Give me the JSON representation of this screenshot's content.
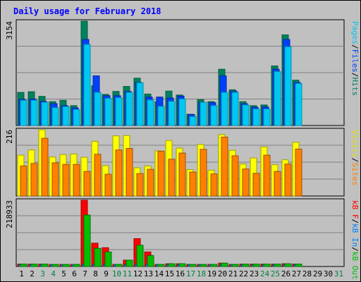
{
  "title": "Daily usage for February 2018",
  "colors": {
    "pages": "#00c8f0",
    "files": "#0040ff",
    "hits": "#008060",
    "visits": "#ffff00",
    "sites": "#ff8000",
    "kb_f": "#ff0000",
    "kb_in": "#0080ff",
    "kb_out": "#00c000",
    "weekday_label": "#000000",
    "weekend_label": "#008040"
  },
  "panels": [
    {
      "ymax_label": "3154",
      "legend": [
        {
          "label": "Pages",
          "color": "#00c8f0"
        },
        {
          "label": "/",
          "color": "#000000"
        },
        {
          "label": "Files",
          "color": "#0040ff"
        },
        {
          "label": "/",
          "color": "#000000"
        },
        {
          "label": "Hits",
          "color": "#008060"
        }
      ]
    },
    {
      "ymax_label": "216",
      "legend": [
        {
          "label": "Visits",
          "color": "#e0e000"
        },
        {
          "label": "/",
          "color": "#000000"
        },
        {
          "label": "Sites",
          "color": "#ff8000"
        }
      ]
    },
    {
      "ymax_label": "218933",
      "legend": [
        {
          "label": "kB F",
          "color": "#ff0000"
        },
        {
          "label": "/",
          "color": "#000000"
        },
        {
          "label": "kB In",
          "color": "#0080ff"
        },
        {
          "label": "/",
          "color": "#000000"
        },
        {
          "label": "kB Out",
          "color": "#00c000"
        }
      ]
    }
  ],
  "chart_data": [
    {
      "type": "bar",
      "categories": [
        "1",
        "2",
        "3",
        "4",
        "5",
        "6",
        "7",
        "8",
        "9",
        "10",
        "11",
        "12",
        "13",
        "14",
        "15",
        "16",
        "17",
        "18",
        "19",
        "20",
        "21",
        "22",
        "23",
        "24",
        "25",
        "26",
        "27",
        "28",
        "29",
        "30",
        "31"
      ],
      "weekend_days": [
        3,
        4,
        10,
        11,
        17,
        18,
        24,
        25,
        31
      ],
      "ylim": [
        0,
        3154
      ],
      "series": [
        {
          "name": "Hits",
          "values": [
            1000,
            1020,
            880,
            720,
            760,
            600,
            3154,
            1200,
            940,
            1030,
            1180,
            1430,
            950,
            720,
            1040,
            920,
            340,
            780,
            720,
            1700,
            1080,
            720,
            600,
            620,
            1800,
            2740,
            1370,
            0,
            0,
            0,
            0
          ]
        },
        {
          "name": "Files",
          "values": [
            790,
            800,
            730,
            660,
            600,
            530,
            2600,
            1500,
            900,
            900,
            1030,
            1300,
            860,
            860,
            830,
            890,
            330,
            700,
            690,
            1500,
            1040,
            660,
            550,
            560,
            1700,
            2600,
            1300,
            0,
            0,
            0,
            0
          ]
        },
        {
          "name": "Pages",
          "values": [
            760,
            760,
            700,
            540,
            570,
            480,
            2450,
            1000,
            820,
            840,
            1000,
            1290,
            770,
            580,
            730,
            800,
            270,
            700,
            600,
            1000,
            1000,
            620,
            500,
            500,
            1630,
            2380,
            1270,
            0,
            0,
            0,
            0
          ]
        }
      ]
    },
    {
      "type": "bar",
      "categories": [
        "1",
        "2",
        "3",
        "4",
        "5",
        "6",
        "7",
        "8",
        "9",
        "10",
        "11",
        "12",
        "13",
        "14",
        "15",
        "16",
        "17",
        "18",
        "19",
        "20",
        "21",
        "22",
        "23",
        "24",
        "25",
        "26",
        "27",
        "28",
        "29",
        "30",
        "31"
      ],
      "ylim": [
        0,
        216
      ],
      "series": [
        {
          "name": "Visits",
          "values": [
            133,
            150,
            216,
            127,
            135,
            137,
            126,
            178,
            99,
            196,
            197,
            92,
            98,
            147,
            181,
            156,
            86,
            168,
            84,
            200,
            149,
            104,
            124,
            160,
            102,
            118,
            175,
            0,
            0,
            0,
            0
          ]
        },
        {
          "name": "Sites",
          "values": [
            98,
            106,
            188,
            108,
            103,
            103,
            80,
            136,
            71,
            150,
            155,
            73,
            87,
            146,
            120,
            140,
            78,
            152,
            72,
            192,
            131,
            88,
            74,
            133,
            80,
            104,
            153,
            0,
            0,
            0,
            0
          ]
        }
      ]
    },
    {
      "type": "bar",
      "categories": [
        "1",
        "2",
        "3",
        "4",
        "5",
        "6",
        "7",
        "8",
        "9",
        "10",
        "11",
        "12",
        "13",
        "14",
        "15",
        "16",
        "17",
        "18",
        "19",
        "20",
        "21",
        "22",
        "23",
        "24",
        "25",
        "26",
        "27",
        "28",
        "29",
        "30",
        "31"
      ],
      "ylim": [
        0,
        218933
      ],
      "series": [
        {
          "name": "kB F",
          "values": [
            8000,
            8000,
            8000,
            6000,
            6000,
            7000,
            218933,
            77000,
            62000,
            7000,
            21000,
            92000,
            48000,
            6000,
            9000,
            9000,
            6000,
            5000,
            7000,
            11000,
            7000,
            8000,
            8000,
            8000,
            8000,
            9000,
            8000,
            0,
            0,
            0,
            0
          ]
        },
        {
          "name": "kB In",
          "values": [
            500,
            500,
            500,
            500,
            500,
            500,
            2000,
            1000,
            800,
            500,
            700,
            1000,
            800,
            500,
            500,
            500,
            400,
            400,
            500,
            700,
            500,
            500,
            500,
            500,
            500,
            600,
            500,
            0,
            0,
            0,
            0
          ]
        },
        {
          "name": "kB Out",
          "values": [
            8000,
            8000,
            8000,
            6000,
            6000,
            7000,
            170000,
            60000,
            48000,
            7000,
            21000,
            70000,
            36000,
            6000,
            9000,
            9000,
            6000,
            5000,
            7000,
            11000,
            7000,
            8000,
            8000,
            8000,
            8000,
            9000,
            8000,
            0,
            0,
            0,
            0
          ]
        }
      ]
    }
  ]
}
